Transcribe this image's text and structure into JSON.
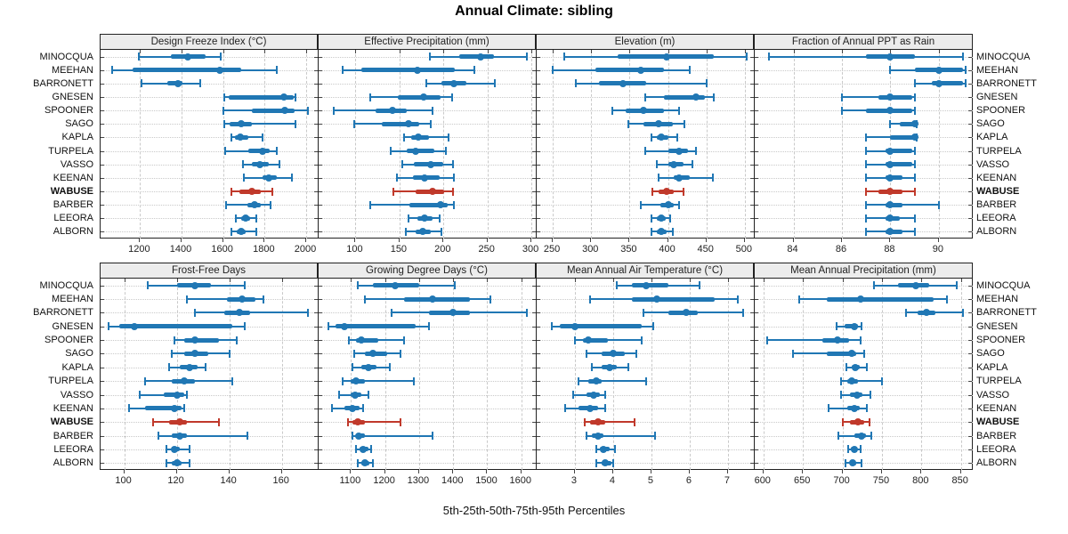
{
  "title": "Annual Climate: sibling",
  "caption": "5th-25th-50th-75th-95th Percentiles",
  "colors": {
    "series": "#2077b4",
    "highlight": "#c0392b",
    "strip_bg": "#ececec",
    "grid": "#c9c9c9",
    "border": "#222222"
  },
  "sites": [
    "MINOCQUA",
    "MEEHAN",
    "BARRONETT",
    "GNESEN",
    "SPOONER",
    "SAGO",
    "KAPLA",
    "TURPELA",
    "VASSO",
    "KEENAN",
    "WABUSE",
    "BARBER",
    "LEEORA",
    "ALBORN"
  ],
  "highlight_site": "WABUSE",
  "chart_data": {
    "type": "trellis-percentile-dotplot",
    "percentiles": [
      5,
      25,
      50,
      75,
      95
    ],
    "legend_note": "each row: 5th-95th whisker, 25th-75th thick bar, 50th dot; WABUSE highlighted red",
    "panels": [
      {
        "title": "Design Freeze Index (°C)",
        "xlim": [
          1010,
          2060
        ],
        "ticks": [
          1200,
          1400,
          1600,
          1800,
          2000
        ],
        "data": [
          [
            1195,
            1347,
            1430,
            1514,
            1590
          ],
          [
            1066,
            1164,
            1584,
            1687,
            1859
          ],
          [
            1205,
            1330,
            1381,
            1405,
            1490
          ],
          [
            1606,
            1625,
            1894,
            1940,
            1950
          ],
          [
            1600,
            1740,
            1895,
            1945,
            2010
          ],
          [
            1605,
            1630,
            1685,
            1740,
            1950
          ],
          [
            1640,
            1658,
            1683,
            1720,
            1790
          ],
          [
            1610,
            1720,
            1790,
            1825,
            1860
          ],
          [
            1695,
            1740,
            1776,
            1820,
            1870
          ],
          [
            1700,
            1790,
            1820,
            1860,
            1930
          ],
          [
            1640,
            1680,
            1740,
            1780,
            1835
          ],
          [
            1615,
            1715,
            1750,
            1780,
            1830
          ],
          [
            1663,
            1688,
            1707,
            1730,
            1760
          ],
          [
            1642,
            1665,
            1685,
            1708,
            1760
          ]
        ]
      },
      {
        "title": "Effective Precipitation (mm)",
        "xlim": [
          58,
          306
        ],
        "ticks": [
          100,
          150,
          200,
          250,
          300
        ],
        "data": [
          [
            185,
            218,
            242,
            257,
            295
          ],
          [
            85,
            107,
            170,
            213,
            235
          ],
          [
            180,
            198,
            212,
            226,
            258
          ],
          [
            117,
            148,
            177,
            197,
            210
          ],
          [
            75,
            123,
            142,
            158,
            188
          ],
          [
            98,
            130,
            160,
            172,
            186
          ],
          [
            155,
            163,
            171,
            184,
            206
          ],
          [
            140,
            158,
            168,
            190,
            203
          ],
          [
            153,
            166,
            186,
            200,
            211
          ],
          [
            147,
            165,
            178,
            196,
            212
          ],
          [
            143,
            168,
            188,
            201,
            211
          ],
          [
            117,
            161,
            197,
            205,
            212
          ],
          [
            160,
            170,
            178,
            188,
            196
          ],
          [
            157,
            168,
            176,
            186,
            198
          ]
        ]
      },
      {
        "title": "Elevation (m)",
        "xlim": [
          229,
          513
        ],
        "ticks": [
          250,
          300,
          350,
          400,
          450,
          500
        ],
        "data": [
          [
            265,
            335,
            398,
            460,
            503
          ],
          [
            250,
            305,
            365,
            395,
            428
          ],
          [
            280,
            310,
            342,
            372,
            450
          ],
          [
            370,
            395,
            437,
            448,
            460
          ],
          [
            328,
            345,
            368,
            395,
            415
          ],
          [
            348,
            368,
            388,
            406,
            422
          ],
          [
            378,
            385,
            391,
            400,
            412
          ],
          [
            370,
            400,
            415,
            426,
            437
          ],
          [
            385,
            400,
            407,
            420,
            432
          ],
          [
            388,
            407,
            415,
            428,
            458
          ],
          [
            380,
            388,
            398,
            408,
            420
          ],
          [
            365,
            390,
            400,
            408,
            415
          ],
          [
            378,
            385,
            391,
            397,
            403
          ],
          [
            378,
            385,
            391,
            398,
            406
          ]
        ]
      },
      {
        "title": "Fraction of Annual PPT as Rain",
        "xlim": [
          82.4,
          91.4
        ],
        "ticks": [
          84,
          86,
          88,
          90
        ],
        "data": [
          [
            83,
            87,
            88,
            89,
            91
          ],
          [
            88,
            89,
            90,
            91,
            91.1
          ],
          [
            89,
            89.7,
            90,
            91,
            91.1
          ],
          [
            86,
            87.5,
            88,
            88.9,
            89
          ],
          [
            86,
            87,
            88,
            88.9,
            89
          ],
          [
            88,
            88.4,
            89,
            89.05,
            89.1
          ],
          [
            87,
            88,
            89,
            89.05,
            89.1
          ],
          [
            87,
            87.8,
            88,
            88.9,
            89
          ],
          [
            87,
            87.8,
            88,
            88.9,
            89
          ],
          [
            87,
            87.8,
            88,
            88.5,
            89
          ],
          [
            87,
            87.5,
            88,
            88.5,
            89
          ],
          [
            87,
            87.8,
            88,
            88.5,
            90
          ],
          [
            87,
            87.8,
            88,
            88.4,
            89
          ],
          [
            87,
            87.8,
            88,
            88.5,
            89
          ]
        ]
      },
      {
        "title": "Frost-Free Days",
        "xlim": [
          91,
          174
        ],
        "ticks": [
          100,
          120,
          140,
          160
        ],
        "data": [
          [
            109,
            120,
            127,
            133,
            146
          ],
          [
            124,
            139,
            145,
            150,
            153
          ],
          [
            127,
            138,
            144,
            148,
            170
          ],
          [
            94,
            98,
            104,
            141,
            146
          ],
          [
            119,
            123,
            127,
            136,
            143
          ],
          [
            118,
            123,
            127,
            132,
            140
          ],
          [
            117,
            121,
            125,
            128,
            131
          ],
          [
            108,
            118,
            123,
            127,
            141
          ],
          [
            106,
            115,
            120,
            123,
            124
          ],
          [
            102,
            108,
            119,
            122,
            123
          ],
          [
            111,
            117,
            121,
            124,
            136
          ],
          [
            113,
            118,
            121,
            124,
            147
          ],
          [
            116,
            118,
            119,
            121,
            125
          ],
          [
            116,
            118,
            120,
            122,
            125
          ]
        ]
      },
      {
        "title": "Growing Degree Days (°C)",
        "xlim": [
          1005,
          1645
        ],
        "ticks": [
          1100,
          1200,
          1300,
          1400,
          1500,
          1600
        ],
        "data": [
          [
            1120,
            1165,
            1230,
            1300,
            1405
          ],
          [
            1140,
            1255,
            1340,
            1450,
            1510
          ],
          [
            1220,
            1330,
            1400,
            1450,
            1615
          ],
          [
            1035,
            1055,
            1080,
            1290,
            1330
          ],
          [
            1095,
            1115,
            1130,
            1180,
            1255
          ],
          [
            1110,
            1140,
            1165,
            1205,
            1245
          ],
          [
            1105,
            1130,
            1150,
            1175,
            1215
          ],
          [
            1075,
            1100,
            1115,
            1140,
            1285
          ],
          [
            1065,
            1100,
            1113,
            1130,
            1150
          ],
          [
            1045,
            1080,
            1105,
            1125,
            1135
          ],
          [
            1090,
            1105,
            1120,
            1140,
            1245
          ],
          [
            1105,
            1115,
            1122,
            1140,
            1340
          ],
          [
            1115,
            1125,
            1135,
            1150,
            1160
          ],
          [
            1120,
            1130,
            1140,
            1155,
            1165
          ]
        ]
      },
      {
        "title": "Mean Annual Air Temperature (°C)",
        "xlim": [
          2.0,
          7.7
        ],
        "ticks": [
          3,
          4,
          5,
          6,
          7
        ],
        "data": [
          [
            4.1,
            4.5,
            4.85,
            5.45,
            6.25
          ],
          [
            3.4,
            4.5,
            5.15,
            6.65,
            7.25
          ],
          [
            4.8,
            5.45,
            5.9,
            6.2,
            7.4
          ],
          [
            2.4,
            2.6,
            3.0,
            4.75,
            5.05
          ],
          [
            3.0,
            3.2,
            3.35,
            3.85,
            4.75
          ],
          [
            3.3,
            3.7,
            4.0,
            4.3,
            4.6
          ],
          [
            3.45,
            3.7,
            3.9,
            4.1,
            4.4
          ],
          [
            3.1,
            3.35,
            3.55,
            3.7,
            4.85
          ],
          [
            2.95,
            3.3,
            3.5,
            3.65,
            3.8
          ],
          [
            2.75,
            3.1,
            3.4,
            3.6,
            3.8
          ],
          [
            3.25,
            3.4,
            3.6,
            3.8,
            4.55
          ],
          [
            3.3,
            3.45,
            3.6,
            3.75,
            5.1
          ],
          [
            3.55,
            3.65,
            3.75,
            3.9,
            4.05
          ],
          [
            3.55,
            3.7,
            3.8,
            3.95,
            4.0
          ]
        ]
      },
      {
        "title": "Mean Annual Precipitation (mm)",
        "xlim": [
          589,
          865
        ],
        "ticks": [
          600,
          650,
          700,
          750,
          800,
          850
        ],
        "data": [
          [
            740,
            770,
            793,
            810,
            845
          ],
          [
            645,
            680,
            723,
            815,
            832
          ],
          [
            780,
            795,
            806,
            818,
            853
          ],
          [
            693,
            703,
            715,
            720,
            724
          ],
          [
            605,
            675,
            694,
            708,
            723
          ],
          [
            637,
            680,
            712,
            718,
            728
          ],
          [
            705,
            712,
            716,
            722,
            731
          ],
          [
            698,
            706,
            712,
            720,
            750
          ],
          [
            698,
            710,
            718,
            725,
            735
          ],
          [
            682,
            706,
            715,
            722,
            731
          ],
          [
            700,
            710,
            720,
            728,
            734
          ],
          [
            695,
            715,
            724,
            730,
            737
          ],
          [
            707,
            711,
            715,
            719,
            723
          ],
          [
            704,
            709,
            713,
            717,
            724
          ]
        ]
      }
    ]
  }
}
